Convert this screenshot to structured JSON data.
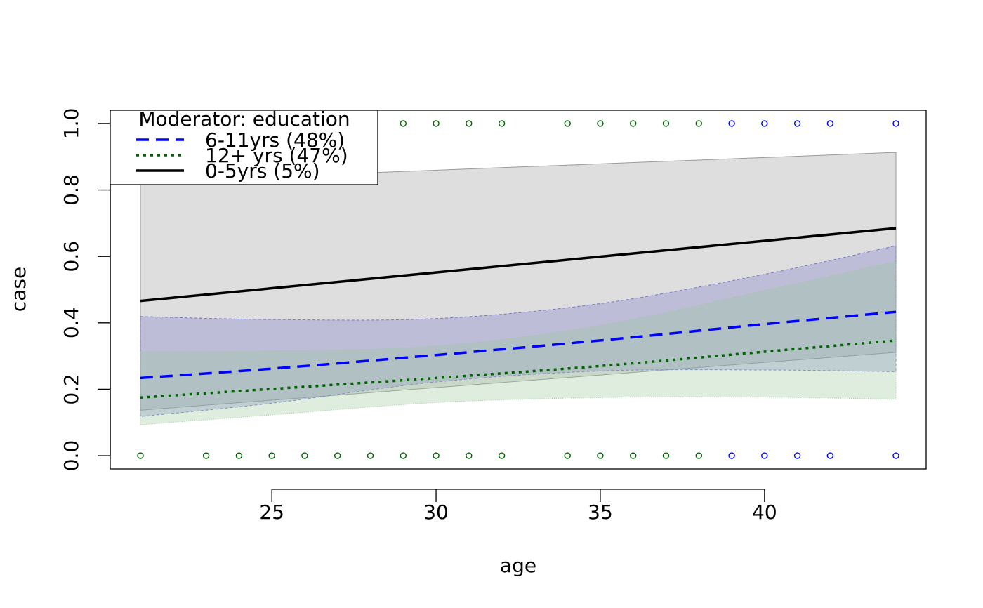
{
  "chart_data": {
    "type": "line",
    "title": "",
    "xlabel": "age",
    "ylabel": "case",
    "xlim": [
      20.08,
      44.92
    ],
    "ylim": [
      -0.04,
      1.04
    ],
    "xticks": [
      25,
      30,
      35,
      40
    ],
    "yticks": [
      0.0,
      0.2,
      0.4,
      0.6,
      0.8,
      1.0
    ],
    "ytick_labels": [
      "0.0",
      "0.2",
      "0.4",
      "0.6",
      "0.8",
      "1.0"
    ],
    "legend": {
      "title": "Moderator: education",
      "position": "top-left",
      "entries": [
        "6-11yrs (48%)",
        "12+ yrs (47%)",
        "0-5yrs (5%)"
      ]
    },
    "series": [
      {
        "name": "6-11yrs (48%)",
        "color": "#0000ff",
        "band_color": "#7878c8",
        "line_style": "dashed",
        "x": [
          21,
          25,
          30,
          35,
          40,
          44
        ],
        "y": [
          0.234,
          0.262,
          0.303,
          0.347,
          0.396,
          0.433
        ],
        "lower": [
          0.118,
          0.158,
          0.222,
          0.255,
          0.258,
          0.253
        ],
        "upper": [
          0.419,
          0.41,
          0.413,
          0.458,
          0.546,
          0.632
        ]
      },
      {
        "name": "12+ yrs (47%)",
        "color": "#006400",
        "band_color": "#9bc79b",
        "line_style": "dotted",
        "x": [
          21,
          25,
          30,
          35,
          40,
          44
        ],
        "y": [
          0.175,
          0.201,
          0.234,
          0.27,
          0.313,
          0.347
        ],
        "lower": [
          0.093,
          0.123,
          0.16,
          0.175,
          0.176,
          0.17
        ],
        "upper": [
          0.313,
          0.315,
          0.33,
          0.392,
          0.497,
          0.585
        ]
      },
      {
        "name": "0-5yrs (5%)",
        "color": "#000000",
        "band_color": "#9a9a9a",
        "line_style": "solid",
        "x": [
          21,
          44
        ],
        "y": [
          0.466,
          0.685
        ],
        "lower": [
          0.137,
          0.311
        ],
        "upper": [
          0.825,
          0.913
        ]
      }
    ],
    "points": [
      {
        "x": 21,
        "y": 0,
        "color": "#006400"
      },
      {
        "x": 23,
        "y": 0,
        "color": "#006400"
      },
      {
        "x": 24,
        "y": 0,
        "color": "#006400"
      },
      {
        "x": 25,
        "y": 0,
        "color": "#006400"
      },
      {
        "x": 26,
        "y": 0,
        "color": "#006400"
      },
      {
        "x": 27,
        "y": 0,
        "color": "#006400"
      },
      {
        "x": 28,
        "y": 0,
        "color": "#006400"
      },
      {
        "x": 29,
        "y": 0,
        "color": "#006400"
      },
      {
        "x": 30,
        "y": 0,
        "color": "#006400"
      },
      {
        "x": 31,
        "y": 0,
        "color": "#006400"
      },
      {
        "x": 32,
        "y": 0,
        "color": "#006400"
      },
      {
        "x": 34,
        "y": 0,
        "color": "#006400"
      },
      {
        "x": 35,
        "y": 0,
        "color": "#006400"
      },
      {
        "x": 36,
        "y": 0,
        "color": "#006400"
      },
      {
        "x": 37,
        "y": 0,
        "color": "#006400"
      },
      {
        "x": 38,
        "y": 0,
        "color": "#006400"
      },
      {
        "x": 39,
        "y": 0,
        "color": "#0000ff"
      },
      {
        "x": 40,
        "y": 0,
        "color": "#0000ff"
      },
      {
        "x": 41,
        "y": 0,
        "color": "#0000ff"
      },
      {
        "x": 42,
        "y": 0,
        "color": "#0000ff"
      },
      {
        "x": 44,
        "y": 0,
        "color": "#0000ff"
      },
      {
        "x": 29,
        "y": 1,
        "color": "#006400"
      },
      {
        "x": 30,
        "y": 1,
        "color": "#006400"
      },
      {
        "x": 31,
        "y": 1,
        "color": "#006400"
      },
      {
        "x": 32,
        "y": 1,
        "color": "#006400"
      },
      {
        "x": 34,
        "y": 1,
        "color": "#006400"
      },
      {
        "x": 35,
        "y": 1,
        "color": "#006400"
      },
      {
        "x": 36,
        "y": 1,
        "color": "#006400"
      },
      {
        "x": 37,
        "y": 1,
        "color": "#006400"
      },
      {
        "x": 38,
        "y": 1,
        "color": "#006400"
      },
      {
        "x": 39,
        "y": 1,
        "color": "#0000ff"
      },
      {
        "x": 40,
        "y": 1,
        "color": "#0000ff"
      },
      {
        "x": 41,
        "y": 1,
        "color": "#0000ff"
      },
      {
        "x": 42,
        "y": 1,
        "color": "#0000ff"
      },
      {
        "x": 44,
        "y": 1,
        "color": "#0000ff"
      }
    ],
    "grid": false
  }
}
